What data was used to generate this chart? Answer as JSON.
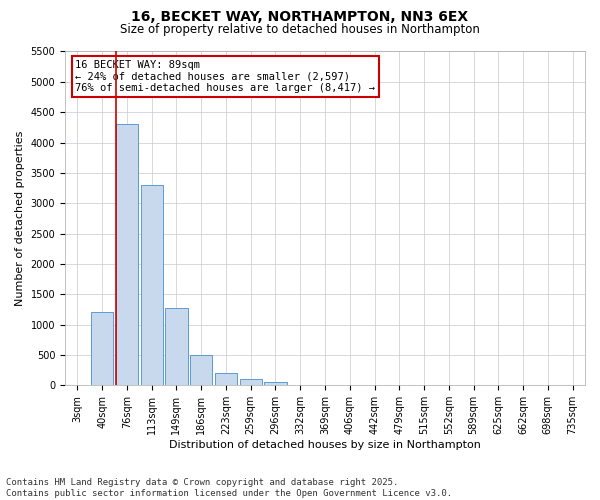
{
  "title1": "16, BECKET WAY, NORTHAMPTON, NN3 6EX",
  "title2": "Size of property relative to detached houses in Northampton",
  "xlabel": "Distribution of detached houses by size in Northampton",
  "ylabel": "Number of detached properties",
  "categories": [
    "3sqm",
    "40sqm",
    "76sqm",
    "113sqm",
    "149sqm",
    "186sqm",
    "223sqm",
    "259sqm",
    "296sqm",
    "332sqm",
    "369sqm",
    "406sqm",
    "442sqm",
    "479sqm",
    "515sqm",
    "552sqm",
    "589sqm",
    "625sqm",
    "662sqm",
    "698sqm",
    "735sqm"
  ],
  "values": [
    0,
    1200,
    4300,
    3300,
    1270,
    500,
    195,
    95,
    50,
    0,
    0,
    0,
    0,
    0,
    0,
    0,
    0,
    0,
    0,
    0,
    0
  ],
  "bar_color": "#c8d9ed",
  "bar_edge_color": "#5b9bd5",
  "property_line_index": 2,
  "annotation_line1": "16 BECKET WAY: 89sqm",
  "annotation_line2": "← 24% of detached houses are smaller (2,597)",
  "annotation_line3": "76% of semi-detached houses are larger (8,417) →",
  "annotation_box_color": "#ffffff",
  "annotation_box_edge": "#cc0000",
  "vline_color": "#cc0000",
  "ylim": [
    0,
    5500
  ],
  "yticks": [
    0,
    500,
    1000,
    1500,
    2000,
    2500,
    3000,
    3500,
    4000,
    4500,
    5000,
    5500
  ],
  "footer1": "Contains HM Land Registry data © Crown copyright and database right 2025.",
  "footer2": "Contains public sector information licensed under the Open Government Licence v3.0.",
  "bg_color": "#ffffff",
  "grid_color": "#c8c8d0",
  "title_fontsize": 10,
  "subtitle_fontsize": 8.5,
  "xlabel_fontsize": 8,
  "ylabel_fontsize": 8,
  "tick_fontsize": 7,
  "annot_fontsize": 7.5,
  "footer_fontsize": 6.5
}
